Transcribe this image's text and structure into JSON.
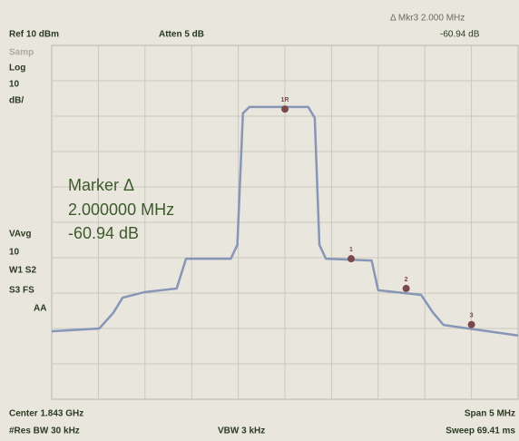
{
  "header": {
    "ref": "Ref 10 dBm",
    "atten": "Atten 5 dB",
    "delta_marker": "Δ Mkr3  2.000 MHz",
    "delta_value": "-60.94 dB"
  },
  "left_panel": {
    "mode": "Samp",
    "scale_type": "Log",
    "scale_value": "10",
    "scale_unit": "dB/",
    "avg": "VAvg",
    "avg_count": "10",
    "line1": "W1  S2",
    "line2": "S3  FS",
    "line3": "AA"
  },
  "readout": {
    "title": "Marker Δ",
    "frequency": "2.000000 MHz",
    "level": "-60.94 dB"
  },
  "footer": {
    "center": "Center 1.843 GHz",
    "span": "Span 5 MHz",
    "rbw": "#Res BW 30 kHz",
    "vbw": "VBW 3 kHz",
    "sweep": "Sweep 69.41 ms"
  },
  "chart_data": {
    "type": "line",
    "xlim": [
      1840.5,
      1845.5
    ],
    "ylim": [
      -90,
      10
    ],
    "color": "#8796b6",
    "x": [
      1840.5,
      1841.01,
      1841.16,
      1841.26,
      1841.5,
      1841.84,
      1841.94,
      1842.42,
      1842.49,
      1842.55,
      1842.62,
      1843.25,
      1843.32,
      1843.37,
      1843.44,
      1843.93,
      1844.0,
      1844.46,
      1844.59,
      1844.7,
      1845.5
    ],
    "values": [
      -70.8,
      -70,
      -65.6,
      -61.3,
      -59.7,
      -58.7,
      -50.3,
      -50.3,
      -46.4,
      -9.2,
      -7.4,
      -7.4,
      -10.5,
      -46.4,
      -50.3,
      -50.8,
      -59.2,
      -60.5,
      -65.6,
      -69,
      -72
    ],
    "markers": [
      {
        "label": "1R",
        "x": 1843.0,
        "y": -8
      },
      {
        "label": "1",
        "x": 1843.71,
        "y": -50.3
      },
      {
        "label": "2",
        "x": 1844.3,
        "y": -58.7
      },
      {
        "label": "3",
        "x": 1845.0,
        "y": -68.9
      }
    ],
    "marker_color": "#7a4a4a"
  }
}
